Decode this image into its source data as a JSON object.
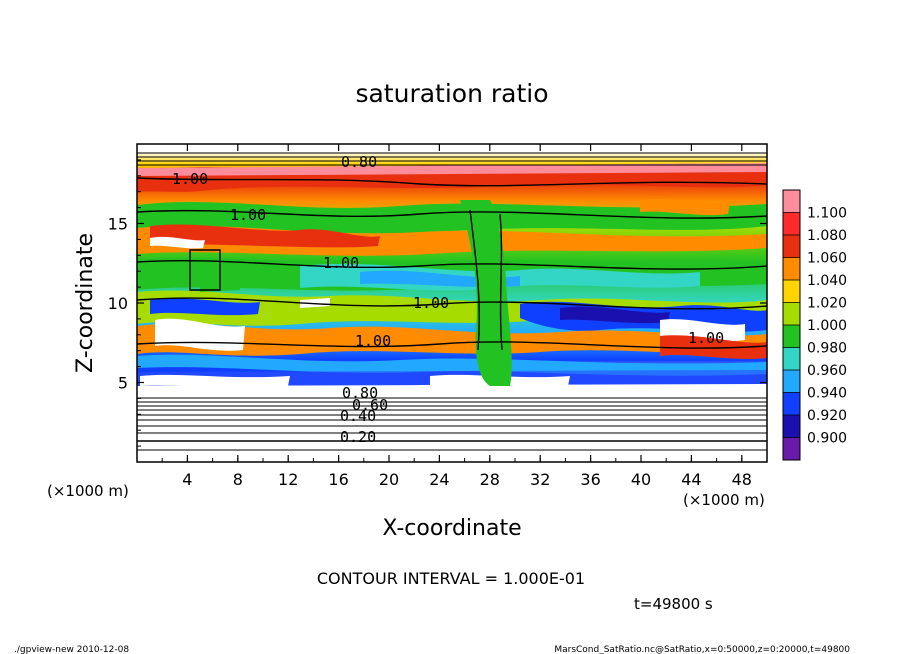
{
  "chart_data": {
    "type": "heatmap",
    "title": "saturation ratio",
    "xlabel": "X-coordinate",
    "ylabel": "Z-coordinate",
    "x_unit": "(×1000 m)",
    "y_unit": "(×1000 m)",
    "xlim": [
      0,
      50
    ],
    "ylim": [
      0,
      20
    ],
    "x_ticks": [
      "4",
      "8",
      "12",
      "16",
      "20",
      "24",
      "28",
      "32",
      "36",
      "40",
      "44",
      "48"
    ],
    "y_ticks": [
      "5",
      "10",
      "15"
    ],
    "contour_interval": "CONTOUR INTERVAL = 1.000E-01",
    "time": "t=49800 s",
    "colorbar": {
      "levels": [
        "1.100",
        "1.080",
        "1.060",
        "1.040",
        "1.020",
        "1.000",
        "0.980",
        "0.960",
        "0.940",
        "0.920",
        "0.900"
      ],
      "colors": [
        "#ff8c9a",
        "#ff2a2a",
        "#e8300e",
        "#ff8c00",
        "#ffd400",
        "#a6dc00",
        "#22c222",
        "#33d6c4",
        "#22a8ff",
        "#1040ff",
        "#1a10b0",
        "#6a1aa8"
      ]
    },
    "contour_labels": [
      "1.00",
      "1.00",
      "1.00",
      "1.00",
      "1.00",
      "1.00",
      "0.80",
      "0.60",
      "0.40",
      "0.20",
      "0.80"
    ]
  },
  "footer": {
    "left": "./gpview-new  2010-12-08",
    "right": "MarsCond_SatRatio.nc@SatRatio,x=0:50000,z=0:20000,t=49800"
  }
}
